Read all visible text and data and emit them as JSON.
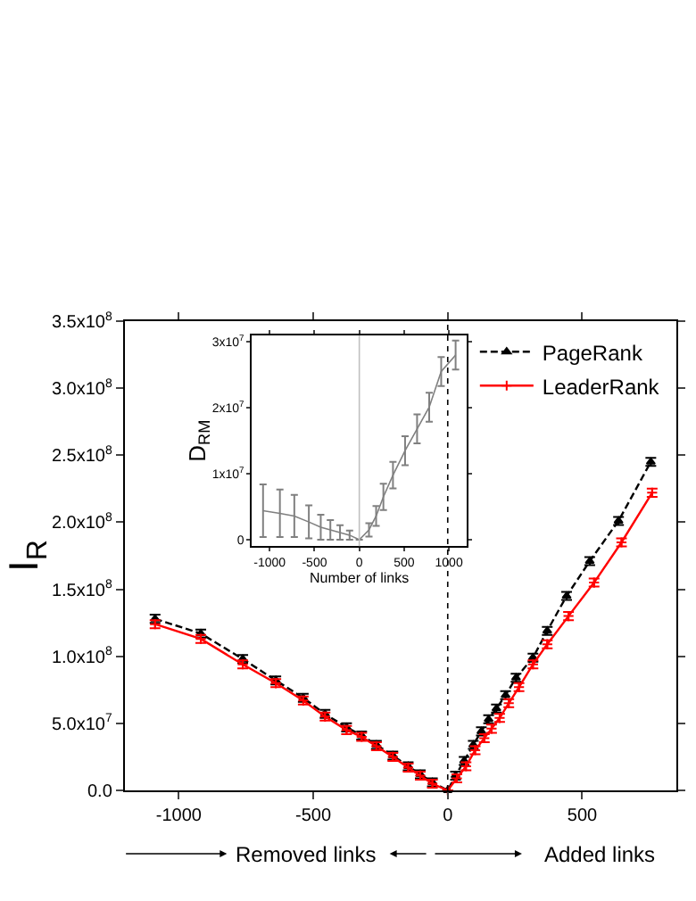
{
  "chart_data": [
    {
      "type": "line",
      "ylabel": "I$_{R}$",
      "xlim": [
        -1200,
        850
      ],
      "ylim": [
        0,
        350000000
      ],
      "xticks": [
        -1000,
        -500,
        0,
        500
      ],
      "yticks": [
        {
          "value": 0,
          "label": "0.0"
        },
        {
          "value": 50000000,
          "label": "5.0x10$^{7}$"
        },
        {
          "value": 100000000,
          "label": "1.0x10$^{8}$"
        },
        {
          "value": 150000000,
          "label": "1.5x10$^{8}$"
        },
        {
          "value": 200000000,
          "label": "2.0x10$^{8}$"
        },
        {
          "value": 250000000,
          "label": "2.5x10$^{8}$"
        },
        {
          "value": 300000000,
          "label": "3.0x10$^{8}$"
        },
        {
          "value": 350000000,
          "label": "3.5x10$^{8}$"
        }
      ],
      "legend": "top right",
      "series": [
        {
          "name": "PageRank",
          "color": "#000000",
          "line_style": "dashed",
          "marker": "triangle",
          "x": [
            -1088,
            -918,
            -762,
            -639,
            -537,
            -456,
            -376,
            -320,
            -265,
            -204,
            -147,
            -102,
            -57,
            0,
            29,
            61,
            95,
            125,
            152,
            181,
            215,
            254,
            317,
            370,
            442,
            528,
            635,
            755
          ],
          "values": [
            128000000,
            117000000,
            98000000,
            82000000,
            69000000,
            57000000,
            47000000,
            41000000,
            34000000,
            26000000,
            18000000,
            12000000,
            6000000,
            0,
            11000000,
            22000000,
            34000000,
            44000000,
            53000000,
            61000000,
            71000000,
            84000000,
            99000000,
            119000000,
            145000000,
            171000000,
            201000000,
            245000000
          ],
          "errors": [
            3000000,
            3000000,
            3000000,
            3000000,
            3000000,
            3000000,
            3000000,
            3000000,
            3000000,
            3000000,
            3000000,
            3000000,
            3000000,
            null,
            3000000,
            3000000,
            3000000,
            3000000,
            3000000,
            3000000,
            3000000,
            3000000,
            3000000,
            3000000,
            3000000,
            3000000,
            3000000,
            3000000
          ]
        },
        {
          "name": "LeaderRank",
          "color": "#ff0000",
          "line_style": "solid",
          "marker": "cross",
          "x": [
            -1088,
            -918,
            -762,
            -639,
            -537,
            -456,
            -376,
            -320,
            -265,
            -204,
            -147,
            -102,
            -57,
            0,
            34,
            68,
            102,
            136,
            163,
            193,
            227,
            265,
            317,
            370,
            449,
            544,
            646,
            760
          ],
          "values": [
            124000000,
            113000000,
            94000000,
            80000000,
            67000000,
            55000000,
            45000000,
            40000000,
            33000000,
            25000000,
            17000000,
            11000000,
            5000000,
            0,
            9000000,
            18000000,
            30000000,
            39000000,
            46000000,
            54000000,
            65000000,
            77000000,
            94000000,
            109000000,
            130000000,
            155000000,
            185000000,
            222000000
          ],
          "errors": [
            3000000,
            3000000,
            3000000,
            3000000,
            3000000,
            3000000,
            3000000,
            3000000,
            3000000,
            3000000,
            3000000,
            3000000,
            3000000,
            null,
            3000000,
            3000000,
            3000000,
            3000000,
            3000000,
            3000000,
            3000000,
            3000000,
            3000000,
            3000000,
            3000000,
            3000000,
            3000000,
            3000000
          ]
        }
      ],
      "ref_lines": [
        {
          "axis": "x",
          "value": 0,
          "color": "#000000",
          "line_style": "dotted"
        }
      ],
      "annotations": [
        "Removed links",
        "Added links"
      ]
    },
    {
      "type": "line",
      "xlabel": "Number of links",
      "ylabel": "D$_{RM}$",
      "xlim": [
        -1200,
        1200
      ],
      "ylim": [
        -1000000,
        31000000
      ],
      "xticks": [
        -1000,
        -500,
        0,
        500,
        1000
      ],
      "yticks": [
        0,
        {
          "value": 10000000,
          "label": "1x10$^{7}$"
        },
        {
          "value": 20000000,
          "label": "2x10$^{7}$"
        },
        {
          "value": 30000000,
          "label": "3x10$^{7}$"
        }
      ],
      "series": [
        {
          "color": "#808080",
          "x": [
            -1074,
            -886,
            -725,
            -563,
            -430,
            -323,
            -215,
            -108,
            0,
            108,
            188,
            269,
            376,
            511,
            645,
            780,
            914,
            1075
          ],
          "values": [
            4400000,
            4000000,
            3600000,
            2700000,
            1900000,
            1500000,
            1100000,
            700000,
            0,
            1500000,
            3600000,
            6500000,
            9800000,
            13500000,
            16800000,
            20100000,
            25500000,
            28000000
          ],
          "errors": [
            4000000,
            3600000,
            3200000,
            2500000,
            1900000,
            1500000,
            1100000,
            700000,
            null,
            1000000,
            1500000,
            2000000,
            2000000,
            2200000,
            2200000,
            2200000,
            2200000,
            2200000
          ]
        }
      ],
      "ref_lines": [
        {
          "axis": "x",
          "value": 0,
          "color": "#c0c0c0",
          "line_style": "solid"
        }
      ]
    }
  ]
}
